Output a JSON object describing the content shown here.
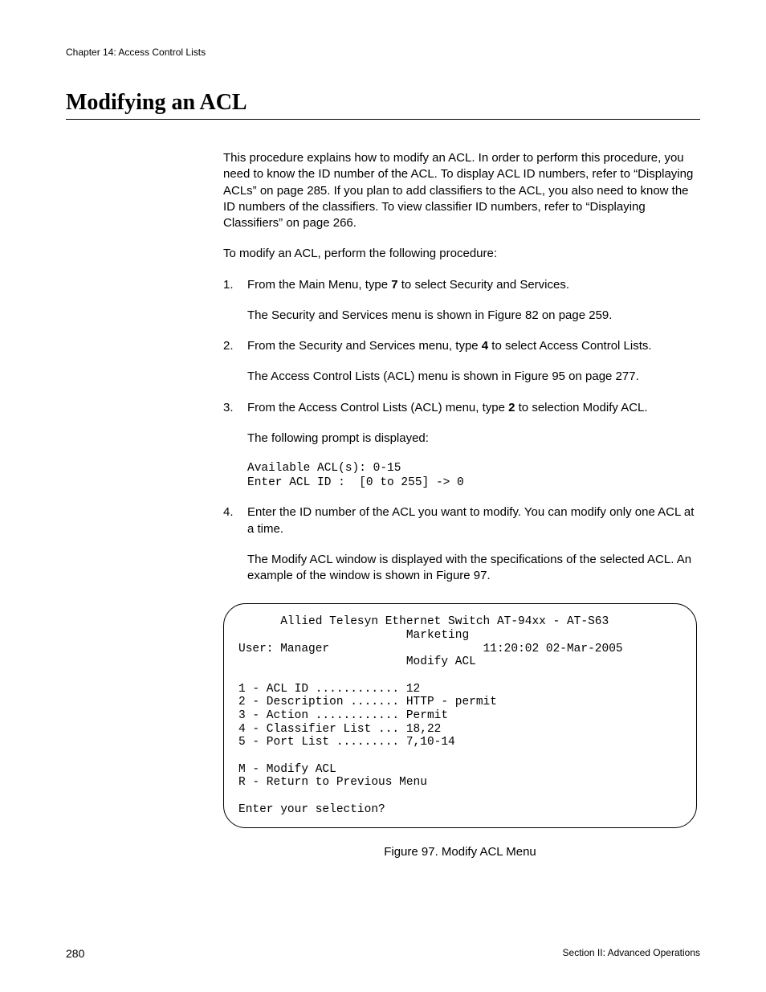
{
  "header": {
    "chapter": "Chapter 14: Access Control Lists"
  },
  "title": "Modifying an ACL",
  "intro": "This procedure explains how to modify an ACL. In order to perform this procedure, you need to know the ID number of the ACL. To display ACL ID numbers, refer to “Displaying ACLs” on page 285. If you plan to add classifiers to the ACL, you also need to know the ID numbers of the classifiers. To view classifier ID numbers, refer to “Displaying Classifiers” on page 266.",
  "lead": "To modify an ACL, perform the following procedure:",
  "steps": {
    "s1": {
      "num": "1.",
      "pre": "From the Main Menu, type ",
      "bold": "7",
      "post": " to select Security and Services.",
      "sub": "The Security and Services menu is shown in Figure 82 on page 259."
    },
    "s2": {
      "num": "2.",
      "pre": "From the Security and Services menu, type ",
      "bold": "4",
      "post": " to select Access Control Lists.",
      "sub": "The Access Control Lists (ACL) menu is shown in Figure 95 on page 277."
    },
    "s3": {
      "num": "3.",
      "pre": "From the Access Control Lists (ACL) menu, type ",
      "bold": "2",
      "post": " to selection Modify ACL.",
      "sub": "The following prompt is displayed:",
      "code": "Available ACL(s): 0-15\nEnter ACL ID :  [0 to 255] -> 0"
    },
    "s4": {
      "num": "4.",
      "text": "Enter the ID number of the ACL you want to modify. You can modify only one ACL at a time.",
      "sub": "The Modify ACL window is displayed with the specifications of the selected ACL. An example of the window is shown in Figure 97."
    }
  },
  "terminal": {
    "l1": "      Allied Telesyn Ethernet Switch AT-94xx - AT-S63",
    "l2": "                        Marketing",
    "l3a": "User: Manager",
    "l3b": "11:20:02 02-Mar-2005",
    "l4": "                        Modify ACL",
    "l5": "",
    "l6": "1 - ACL ID ............ 12",
    "l7": "2 - Description ....... HTTP - permit",
    "l8": "3 - Action ............ Permit",
    "l9": "4 - Classifier List ... 18,22",
    "l10": "5 - Port List ......... 7,10-14",
    "l11": "",
    "l12": "M - Modify ACL",
    "l13": "R - Return to Previous Menu",
    "l14": "",
    "l15": "Enter your selection?"
  },
  "figure_caption": "Figure 97. Modify ACL Menu",
  "footer": {
    "page": "280",
    "section": "Section II: Advanced Operations"
  }
}
